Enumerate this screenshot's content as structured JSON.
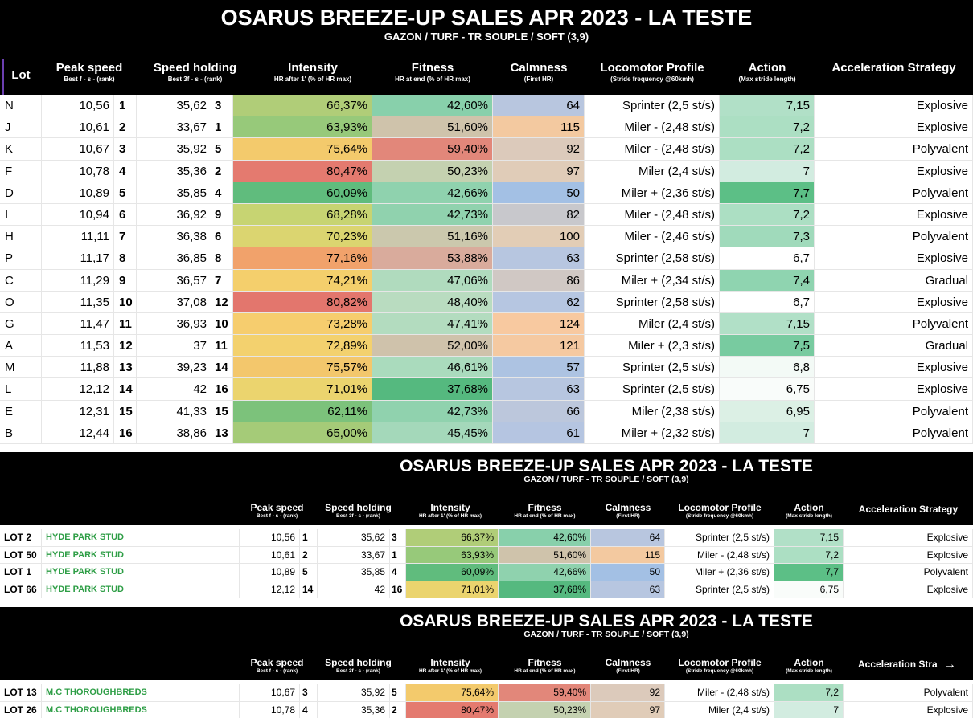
{
  "main": {
    "title": "OSARUS BREEZE-UP SALES APR 2023 - LA TESTE",
    "subtitle": "GAZON / TURF - TR SOUPLE / SOFT (3,9)",
    "headers": {
      "lot": "Lot",
      "peak": "Peak speed",
      "peak_sub": "Best f - s - (rank)",
      "hold": "Speed holding",
      "hold_sub": "Best 3f - s - (rank)",
      "intensity": "Intensity",
      "intensity_sub": "HR after 1' (% of HR max)",
      "fitness": "Fitness",
      "fitness_sub": "HR at end (% of HR max)",
      "calm": "Calmness",
      "calm_sub": "(First HR)",
      "loco": "Locomotor Profile",
      "loco_sub": "(Stride frequency @60kmh)",
      "action": "Action",
      "action_sub": "(Max stride length)",
      "accel": "Acceleration Strategy"
    },
    "rows": [
      {
        "lot": "N",
        "peak": "10,56",
        "prank": "1",
        "hold": "35,62",
        "hrank": "3",
        "intensity": "66,37%",
        "fitness": "42,60%",
        "calm": "64",
        "loco": "Sprinter (2,5 st/s)",
        "action": "7,15",
        "accel": "Explosive",
        "c_int": "#b0cd78",
        "c_fit": "#88d0ab",
        "c_calm": "#b8c6df",
        "c_act": "#b1e0c7"
      },
      {
        "lot": "J",
        "peak": "10,61",
        "prank": "2",
        "hold": "33,67",
        "hrank": "1",
        "intensity": "63,93%",
        "fitness": "51,60%",
        "calm": "115",
        "loco": "Miler - (2,48 st/s)",
        "action": "7,2",
        "accel": "Explosive",
        "c_int": "#97c97a",
        "c_fit": "#cfc3ab",
        "c_calm": "#f3c9a0",
        "c_act": "#acdfc3"
      },
      {
        "lot": "K",
        "peak": "10,67",
        "prank": "3",
        "hold": "35,92",
        "hrank": "5",
        "intensity": "75,64%",
        "fitness": "59,40%",
        "calm": "92",
        "loco": "Miler - (2,48 st/s)",
        "action": "7,2",
        "accel": "Polyvalent",
        "c_int": "#f3ca6c",
        "c_fit": "#e2877a",
        "c_calm": "#dccabb",
        "c_act": "#acdfc3"
      },
      {
        "lot": "F",
        "peak": "10,78",
        "prank": "4",
        "hold": "35,36",
        "hrank": "2",
        "intensity": "80,47%",
        "fitness": "50,23%",
        "calm": "97",
        "loco": "Miler (2,4 st/s)",
        "action": "7",
        "accel": "Explosive",
        "c_int": "#e47a6f",
        "c_fit": "#c4d1b0",
        "c_calm": "#e0ccb8",
        "c_act": "#d2ece0"
      },
      {
        "lot": "D",
        "peak": "10,89",
        "prank": "5",
        "hold": "35,85",
        "hrank": "4",
        "intensity": "60,09%",
        "fitness": "42,66%",
        "calm": "50",
        "loco": "Miler + (2,36 st/s)",
        "action": "7,7",
        "accel": "Polyvalent",
        "c_int": "#60bc7d",
        "c_fit": "#8fd2ae",
        "c_calm": "#a3c0e4",
        "c_act": "#5cbf86"
      },
      {
        "lot": "I",
        "peak": "10,94",
        "prank": "6",
        "hold": "36,92",
        "hrank": "9",
        "intensity": "68,28%",
        "fitness": "42,73%",
        "calm": "82",
        "loco": "Miler - (2,48 st/s)",
        "action": "7,2",
        "accel": "Explosive",
        "c_int": "#c7d472",
        "c_fit": "#90d2ae",
        "c_calm": "#c8c8cc",
        "c_act": "#acdfc3"
      },
      {
        "lot": "H",
        "peak": "11,11",
        "prank": "7",
        "hold": "36,38",
        "hrank": "6",
        "intensity": "70,23%",
        "fitness": "51,16%",
        "calm": "100",
        "loco": "Miler - (2,46 st/s)",
        "action": "7,3",
        "accel": "Polyvalent",
        "c_int": "#dbd570",
        "c_fit": "#cbc8ad",
        "c_calm": "#e2cdb6",
        "c_act": "#a0dabb"
      },
      {
        "lot": "P",
        "peak": "11,17",
        "prank": "8",
        "hold": "36,85",
        "hrank": "8",
        "intensity": "77,16%",
        "fitness": "53,88%",
        "calm": "63",
        "loco": "Sprinter (2,58 st/s)",
        "action": "6,7",
        "accel": "Explosive",
        "c_int": "#f1a26b",
        "c_fit": "#d9ab9c",
        "c_calm": "#b7c6e0",
        "c_act": "#ffffff"
      },
      {
        "lot": "C",
        "peak": "11,29",
        "prank": "9",
        "hold": "36,57",
        "hrank": "7",
        "intensity": "74,21%",
        "fitness": "47,06%",
        "calm": "86",
        "loco": "Miler + (2,34 st/s)",
        "action": "7,4",
        "accel": "Gradual",
        "c_int": "#f4cf6c",
        "c_fit": "#b0dbbe",
        "c_calm": "#d0c8c4",
        "c_act": "#8fd4b0"
      },
      {
        "lot": "O",
        "peak": "11,35",
        "prank": "10",
        "hold": "37,08",
        "hrank": "12",
        "intensity": "80,82%",
        "fitness": "48,40%",
        "calm": "62",
        "loco": "Sprinter (2,58 st/s)",
        "action": "6,7",
        "accel": "Explosive",
        "c_int": "#e3766d",
        "c_fit": "#b9dcc0",
        "c_calm": "#b6c6e1",
        "c_act": "#ffffff"
      },
      {
        "lot": "G",
        "peak": "11,47",
        "prank": "11",
        "hold": "36,93",
        "hrank": "10",
        "intensity": "73,28%",
        "fitness": "47,41%",
        "calm": "124",
        "loco": "Miler (2,4 st/s)",
        "action": "7,15",
        "accel": "Polyvalent",
        "c_int": "#f6cd6e",
        "c_fit": "#b3dcbf",
        "c_calm": "#f8c9a0",
        "c_act": "#b1e0c7"
      },
      {
        "lot": "A",
        "peak": "11,53",
        "prank": "12",
        "hold": "37",
        "hrank": "11",
        "intensity": "72,89%",
        "fitness": "52,00%",
        "calm": "121",
        "loco": "Miler + (2,3 st/s)",
        "action": "7,5",
        "accel": "Gradual",
        "c_int": "#f3d16e",
        "c_fit": "#cfc2ab",
        "c_calm": "#f5c9a1",
        "c_act": "#78cba0"
      },
      {
        "lot": "M",
        "peak": "11,88",
        "prank": "13",
        "hold": "39,23",
        "hrank": "14",
        "intensity": "75,57%",
        "fitness": "46,61%",
        "calm": "57",
        "loco": "Sprinter (2,5 st/s)",
        "action": "6,8",
        "accel": "Explosive",
        "c_int": "#f3c76c",
        "c_fit": "#aadbbd",
        "c_calm": "#adc3e2",
        "c_act": "#f3faf6"
      },
      {
        "lot": "L",
        "peak": "12,12",
        "prank": "14",
        "hold": "42",
        "hrank": "16",
        "intensity": "71,01%",
        "fitness": "37,68%",
        "calm": "63",
        "loco": "Sprinter (2,5 st/s)",
        "action": "6,75",
        "accel": "Explosive",
        "c_int": "#ebd46e",
        "c_fit": "#55b97f",
        "c_calm": "#b7c6e0",
        "c_act": "#f9fcfa"
      },
      {
        "lot": "E",
        "peak": "12,31",
        "prank": "15",
        "hold": "41,33",
        "hrank": "15",
        "intensity": "62,11%",
        "fitness": "42,73%",
        "calm": "66",
        "loco": "Miler (2,38 st/s)",
        "action": "6,95",
        "accel": "Polyvalent",
        "c_int": "#7cc27b",
        "c_fit": "#90d2ae",
        "c_calm": "#bcc7dc",
        "c_act": "#dcf0e5"
      },
      {
        "lot": "B",
        "peak": "12,44",
        "prank": "16",
        "hold": "38,86",
        "hrank": "13",
        "intensity": "65,00%",
        "fitness": "45,45%",
        "calm": "61",
        "loco": "Miler + (2,32 st/s)",
        "action": "7",
        "accel": "Polyvalent",
        "c_int": "#a5cb78",
        "c_fit": "#a4d8ba",
        "c_calm": "#b5c5e1",
        "c_act": "#d2ece0"
      }
    ]
  },
  "sub1": {
    "title": "OSARUS BREEZE-UP SALES APR 2023 - LA TESTE",
    "subtitle": "GAZON / TURF - TR SOUPLE / SOFT (3,9)",
    "rows": [
      {
        "lot": "LOT 2",
        "cons": "HYDE PARK STUD",
        "peak": "10,56",
        "prank": "1",
        "hold": "35,62",
        "hrank": "3",
        "intensity": "66,37%",
        "fitness": "42,60%",
        "calm": "64",
        "loco": "Sprinter (2,5 st/s)",
        "action": "7,15",
        "accel": "Explosive",
        "c_int": "#b0cd78",
        "c_fit": "#88d0ab",
        "c_calm": "#b8c6df",
        "c_act": "#b1e0c7"
      },
      {
        "lot": "LOT 50",
        "cons": "HYDE PARK STUD",
        "peak": "10,61",
        "prank": "2",
        "hold": "33,67",
        "hrank": "1",
        "intensity": "63,93%",
        "fitness": "51,60%",
        "calm": "115",
        "loco": "Miler - (2,48 st/s)",
        "action": "7,2",
        "accel": "Explosive",
        "c_int": "#97c97a",
        "c_fit": "#cfc3ab",
        "c_calm": "#f3c9a0",
        "c_act": "#acdfc3"
      },
      {
        "lot": "LOT 1",
        "cons": "HYDE PARK STUD",
        "peak": "10,89",
        "prank": "5",
        "hold": "35,85",
        "hrank": "4",
        "intensity": "60,09%",
        "fitness": "42,66%",
        "calm": "50",
        "loco": "Miler + (2,36 st/s)",
        "action": "7,7",
        "accel": "Polyvalent",
        "c_int": "#60bc7d",
        "c_fit": "#8fd2ae",
        "c_calm": "#a3c0e4",
        "c_act": "#5cbf86"
      },
      {
        "lot": "LOT 66",
        "cons": "HYDE PARK STUD",
        "peak": "12,12",
        "prank": "14",
        "hold": "42",
        "hrank": "16",
        "intensity": "71,01%",
        "fitness": "37,68%",
        "calm": "63",
        "loco": "Sprinter (2,5 st/s)",
        "action": "6,75",
        "accel": "Explosive",
        "c_int": "#ebd46e",
        "c_fit": "#55b97f",
        "c_calm": "#b7c6e0",
        "c_act": "#f9fcfa"
      }
    ]
  },
  "sub2": {
    "title": "OSARUS BREEZE-UP SALES APR 2023 - LA TESTE",
    "subtitle": "GAZON / TURF - TR SOUPLE / SOFT (3,9)",
    "accel_header_truncated": "Acceleration Stra",
    "rows": [
      {
        "lot": "LOT 13",
        "cons": "M.C THOROUGHBREDS",
        "peak": "10,67",
        "prank": "3",
        "hold": "35,92",
        "hrank": "5",
        "intensity": "75,64%",
        "fitness": "59,40%",
        "calm": "92",
        "loco": "Miler - (2,48 st/s)",
        "action": "7,2",
        "accel": "Polyvalent",
        "c_int": "#f3ca6c",
        "c_fit": "#e2877a",
        "c_calm": "#dccabb",
        "c_act": "#acdfc3"
      },
      {
        "lot": "LOT 26",
        "cons": "M.C THOROUGHBREDS",
        "peak": "10,78",
        "prank": "4",
        "hold": "35,36",
        "hrank": "2",
        "intensity": "80,47%",
        "fitness": "50,23%",
        "calm": "97",
        "loco": "Miler (2,4 st/s)",
        "action": "7",
        "accel": "Explosive",
        "c_int": "#e47a6f",
        "c_fit": "#c4d1b0",
        "c_calm": "#e0ccb8",
        "c_act": "#d2ece0"
      }
    ]
  },
  "icons": {
    "scroll_right": "arrow-right-icon"
  }
}
